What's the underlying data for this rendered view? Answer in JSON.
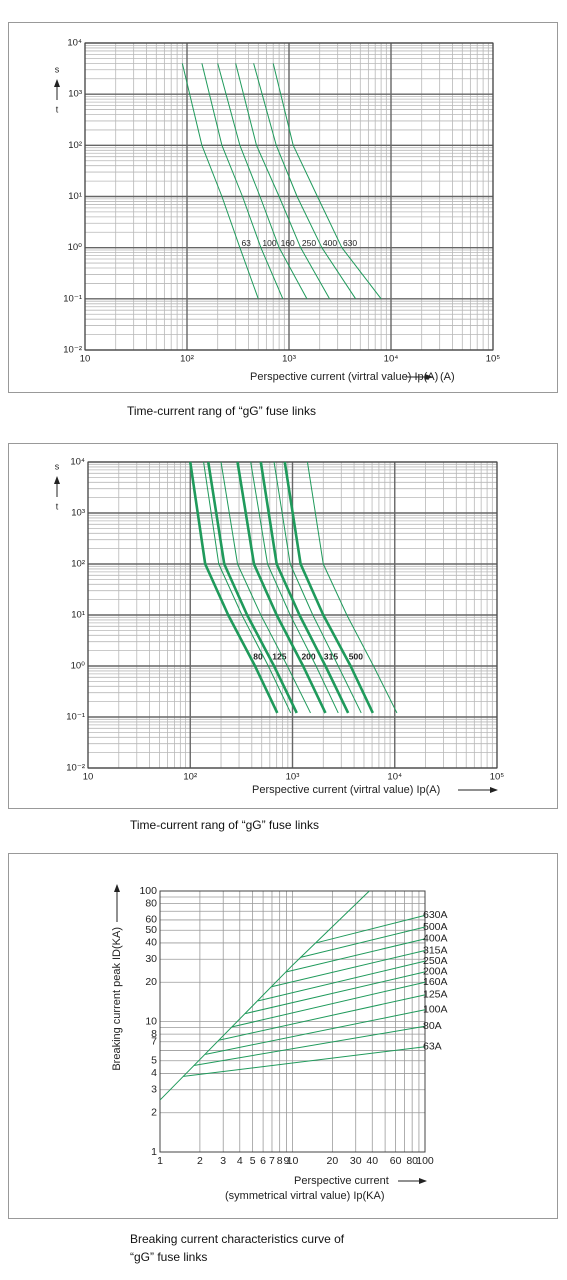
{
  "chart_data": [
    {
      "type": "line",
      "title": [
        "Time-current rang of  “gG” fuse links"
      ],
      "x_label": [
        "Perspective current (virtral value) Ip(A)"
      ],
      "x_unit": "(A)",
      "y_label": [
        "s",
        "t"
      ],
      "log_x": true,
      "log_y": true,
      "grid": true,
      "color": "#1f9a5b",
      "xlim": [
        10,
        100000
      ],
      "ylim": [
        0.01,
        10000
      ],
      "xticks": [
        10,
        {
          "value": 100,
          "label": "10²"
        },
        {
          "value": 1000,
          "label": "10³"
        },
        {
          "value": 10000,
          "label": "10⁴"
        },
        {
          "value": 100000,
          "label": "10⁵"
        }
      ],
      "yticks": [
        {
          "value": 0.01,
          "label": "10⁻²"
        },
        {
          "value": 0.1,
          "label": "10⁻¹"
        },
        {
          "value": 1,
          "label": "10⁰"
        },
        {
          "value": 10,
          "label": "10¹"
        },
        {
          "value": 100,
          "label": "10²"
        },
        {
          "value": 1000,
          "label": "10³"
        },
        {
          "value": 10000,
          "label": "10⁴"
        }
      ],
      "xminor": [
        20,
        30,
        40,
        50,
        60,
        70,
        80,
        90,
        200,
        300,
        400,
        500,
        600,
        700,
        800,
        900,
        2000,
        3000,
        4000,
        5000,
        6000,
        7000,
        8000,
        9000,
        20000,
        30000,
        40000,
        50000,
        60000,
        70000,
        80000,
        90000
      ],
      "yminor": [
        0.02,
        0.03,
        0.04,
        0.05,
        0.06,
        0.07,
        0.08,
        0.09,
        0.2,
        0.3,
        0.4,
        0.5,
        0.6,
        0.7,
        0.8,
        0.9,
        2,
        3,
        4,
        5,
        6,
        7,
        8,
        9,
        20,
        30,
        40,
        50,
        60,
        70,
        80,
        90,
        200,
        300,
        400,
        500,
        600,
        700,
        800,
        900,
        2000,
        3000,
        4000,
        5000,
        6000,
        7000,
        8000,
        9000
      ],
      "series": [
        {
          "name": "63",
          "width": 1,
          "x": [
            90,
            140,
            220,
            330,
            500
          ],
          "values": [
            4000,
            100,
            10,
            1,
            0.1
          ]
        },
        {
          "name": "100",
          "width": 1,
          "x": [
            140,
            220,
            350,
            530,
            870
          ],
          "values": [
            4000,
            100,
            10,
            1,
            0.1
          ]
        },
        {
          "name": "160",
          "width": 1,
          "x": [
            200,
            330,
            520,
            800,
            1500
          ],
          "values": [
            4000,
            100,
            10,
            1,
            0.1
          ]
        },
        {
          "name": "250",
          "width": 1,
          "x": [
            300,
            480,
            800,
            1300,
            2500
          ],
          "values": [
            4000,
            100,
            10,
            1,
            0.1
          ]
        },
        {
          "name": "400",
          "width": 1,
          "x": [
            450,
            750,
            1200,
            2100,
            4500
          ],
          "values": [
            4000,
            100,
            10,
            1,
            0.1
          ]
        },
        {
          "name": "630",
          "width": 1,
          "x": [
            700,
            1100,
            1900,
            3300,
            8000
          ],
          "values": [
            4000,
            100,
            10,
            1,
            0.1
          ]
        }
      ]
    },
    {
      "type": "line",
      "title": [
        "Time-current rang of  “gG” fuse links"
      ],
      "x_label": [
        "Perspective current (virtral value) Ip(A)"
      ],
      "y_label": [
        "s",
        "t"
      ],
      "log_x": true,
      "log_y": true,
      "grid": true,
      "color": "#1f9a5b",
      "xlim": [
        10,
        100000
      ],
      "ylim": [
        0.01,
        10000
      ],
      "xticks": [
        10,
        {
          "value": 100,
          "label": "10²"
        },
        {
          "value": 1000,
          "label": "10³"
        },
        {
          "value": 10000,
          "label": "10⁴"
        },
        {
          "value": 100000,
          "label": "10⁵"
        }
      ],
      "yticks": [
        {
          "value": 0.01,
          "label": "10⁻²"
        },
        {
          "value": 0.1,
          "label": "10⁻¹"
        },
        {
          "value": 1,
          "label": "10⁰"
        },
        {
          "value": 10,
          "label": "10¹"
        },
        {
          "value": 100,
          "label": "10²"
        },
        {
          "value": 1000,
          "label": "10³"
        },
        {
          "value": 10000,
          "label": "10⁴"
        }
      ],
      "xminor": [
        20,
        30,
        40,
        50,
        60,
        70,
        80,
        90,
        200,
        300,
        400,
        500,
        600,
        700,
        800,
        900,
        2000,
        3000,
        4000,
        5000,
        6000,
        7000,
        8000,
        9000,
        20000,
        30000,
        40000,
        50000,
        60000,
        70000,
        80000,
        90000
      ],
      "yminor": [
        0.02,
        0.03,
        0.04,
        0.05,
        0.06,
        0.07,
        0.08,
        0.09,
        0.2,
        0.3,
        0.4,
        0.5,
        0.6,
        0.7,
        0.8,
        0.9,
        2,
        3,
        4,
        5,
        6,
        7,
        8,
        9,
        20,
        30,
        40,
        50,
        60,
        70,
        80,
        90,
        200,
        300,
        400,
        500,
        600,
        700,
        800,
        900,
        2000,
        3000,
        4000,
        5000,
        6000,
        7000,
        8000,
        9000
      ],
      "series": [
        {
          "name": "80",
          "width": 2.6,
          "x": [
            100,
            140,
            235,
            430,
            710
          ],
          "values": [
            10000,
            100,
            10,
            1,
            0.12
          ]
        },
        {
          "name": "125",
          "width": 2.6,
          "x": [
            150,
            215,
            360,
            660,
            1100
          ],
          "values": [
            10000,
            100,
            10,
            1,
            0.12
          ]
        },
        {
          "name": "200",
          "width": 2.6,
          "x": [
            290,
            420,
            700,
            1270,
            2100
          ],
          "values": [
            10000,
            100,
            10,
            1,
            0.12
          ]
        },
        {
          "name": "315",
          "width": 2.6,
          "x": [
            490,
            700,
            1170,
            2100,
            3500
          ],
          "values": [
            10000,
            100,
            10,
            1,
            0.12
          ]
        },
        {
          "name": "500",
          "width": 2.6,
          "x": [
            840,
            1200,
            2000,
            3700,
            6100
          ],
          "values": [
            10000,
            100,
            10,
            1,
            0.12
          ]
        },
        {
          "width": 1,
          "x": [
            135,
            190,
            320,
            580,
            960
          ],
          "values": [
            10000,
            100,
            10,
            1,
            0.12
          ]
        },
        {
          "width": 1,
          "x": [
            200,
            290,
            490,
            890,
            1500
          ],
          "values": [
            10000,
            100,
            10,
            1,
            0.12
          ]
        },
        {
          "width": 1,
          "x": [
            390,
            570,
            950,
            1700,
            2800
          ],
          "values": [
            10000,
            100,
            10,
            1,
            0.12
          ]
        },
        {
          "width": 1,
          "x": [
            660,
            950,
            1580,
            2800,
            4700
          ],
          "values": [
            10000,
            100,
            10,
            1,
            0.12
          ]
        },
        {
          "width": 1,
          "x": [
            1400,
            2000,
            3400,
            6200,
            10500
          ],
          "values": [
            10000,
            100,
            10,
            1,
            0.12
          ]
        }
      ]
    },
    {
      "type": "line",
      "title": [
        "Breaking current characteristics curve of",
        "“gG” fuse links"
      ],
      "x_label": [
        "Perspective current",
        "(symmetrical virtral value) Ip(KA)"
      ],
      "y_label": [
        "Breaking current peak ID(KA)"
      ],
      "log_x": true,
      "log_y": true,
      "grid": true,
      "color": "#1f9a5b",
      "xlim": [
        1,
        100
      ],
      "ylim": [
        1,
        100
      ],
      "xticks": [
        1,
        2,
        3,
        4,
        5,
        6,
        7,
        8,
        9,
        10,
        20,
        30,
        40,
        60,
        80,
        100
      ],
      "yticks": [
        1,
        2,
        3,
        4,
        5,
        7,
        8,
        10,
        20,
        30,
        40,
        50,
        60,
        80,
        100
      ],
      "xminor": [
        50,
        70,
        90
      ],
      "yminor": [
        6,
        9,
        70,
        90
      ],
      "series": [
        {
          "width": 1,
          "x": [
            1,
            10,
            38
          ],
          "values": [
            2.5,
            27,
            100
          ]
        },
        {
          "name": "63A",
          "width": 1,
          "x": [
            1.5,
            100
          ],
          "values": [
            3.8,
            6.4
          ]
        },
        {
          "name": "80A",
          "width": 1,
          "x": [
            1.8,
            100
          ],
          "values": [
            4.6,
            9.2
          ]
        },
        {
          "name": "100A",
          "width": 1,
          "x": [
            2.2,
            100
          ],
          "values": [
            5.6,
            12.3
          ]
        },
        {
          "name": "125A",
          "width": 1,
          "x": [
            2.8,
            100
          ],
          "values": [
            7.2,
            16
          ]
        },
        {
          "name": "160A",
          "width": 1,
          "x": [
            3.5,
            100
          ],
          "values": [
            9.1,
            20
          ]
        },
        {
          "name": "200A",
          "width": 1,
          "x": [
            4.4,
            100
          ],
          "values": [
            11.5,
            24
          ]
        },
        {
          "name": "250A",
          "width": 1,
          "x": [
            5.5,
            100
          ],
          "values": [
            14.4,
            29
          ]
        },
        {
          "name": "315A",
          "width": 1,
          "x": [
            7,
            100
          ],
          "values": [
            18.5,
            35
          ]
        },
        {
          "name": "400A",
          "width": 1,
          "x": [
            9,
            100
          ],
          "values": [
            24,
            43
          ]
        },
        {
          "name": "500A",
          "width": 1,
          "x": [
            11.5,
            100
          ],
          "values": [
            31,
            53
          ]
        },
        {
          "name": "630A",
          "width": 1,
          "x": [
            15,
            100
          ],
          "values": [
            40,
            65
          ]
        }
      ]
    }
  ]
}
